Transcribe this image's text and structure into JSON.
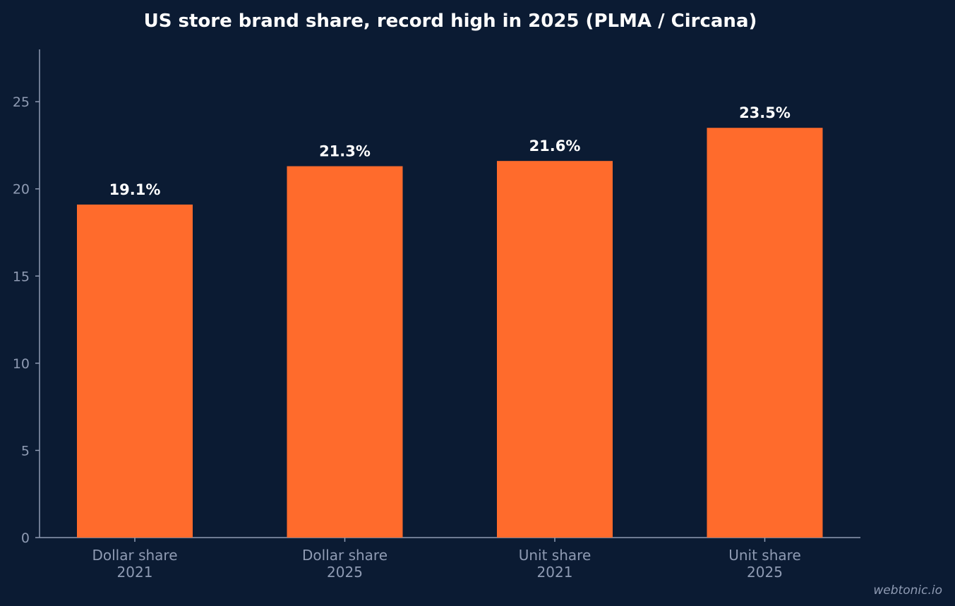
{
  "chart_data": {
    "type": "bar",
    "title": "US store brand share, record high in 2025 (PLMA / Circana)",
    "categories": [
      [
        "Dollar share",
        "2021"
      ],
      [
        "Dollar share",
        "2025"
      ],
      [
        "Unit share",
        "2021"
      ],
      [
        "Unit share",
        "2025"
      ]
    ],
    "values": [
      19.1,
      21.3,
      21.6,
      23.5
    ],
    "data_labels": [
      "19.1%",
      "21.3%",
      "21.6%",
      "23.5%"
    ],
    "xlabel": "",
    "ylabel": "",
    "ylim": [
      0,
      28
    ],
    "yticks": [
      0,
      5,
      10,
      15,
      20,
      25
    ],
    "grid": false,
    "bar_color": "#ff6b2c"
  },
  "colors": {
    "background": "#0b1b33",
    "bar": "#ff6b2c",
    "axis": "#8f9bb3",
    "title": "#ffffff"
  },
  "watermark": "webtonic.io"
}
